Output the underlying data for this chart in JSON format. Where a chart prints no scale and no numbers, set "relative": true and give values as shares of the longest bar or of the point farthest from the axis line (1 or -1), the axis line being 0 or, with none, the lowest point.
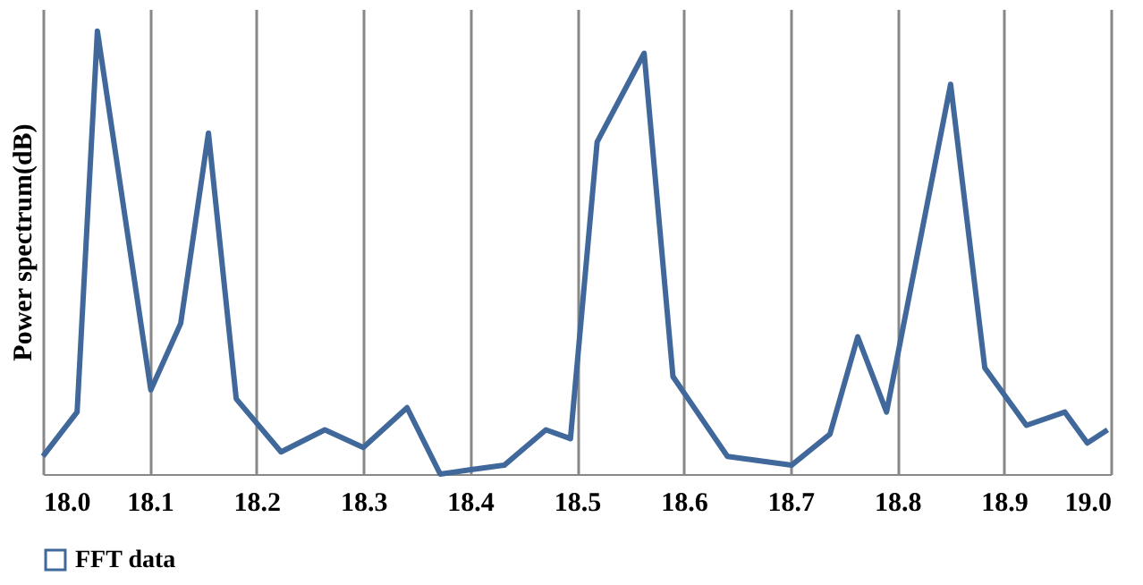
{
  "chart_data": {
    "type": "line",
    "ylabel": "Power spectrum(dB)",
    "relative": true,
    "x": [
      18.0,
      18.032,
      18.051,
      18.101,
      18.129,
      18.155,
      18.181,
      18.223,
      18.264,
      18.3,
      18.341,
      18.372,
      18.401,
      18.432,
      18.471,
      18.494,
      18.519,
      18.563,
      18.59,
      18.641,
      18.701,
      18.737,
      18.763,
      18.79,
      18.85,
      18.882,
      18.921,
      18.957,
      18.978,
      18.997
    ],
    "series": [
      {
        "name": "FFT data",
        "color": "#41689a",
        "values": [
          0.04,
          0.14,
          1.0,
          0.19,
          0.34,
          0.77,
          0.17,
          0.05,
          0.1,
          0.06,
          0.15,
          0.0,
          0.01,
          0.02,
          0.1,
          0.08,
          0.75,
          0.95,
          0.22,
          0.04,
          0.02,
          0.09,
          0.31,
          0.14,
          0.88,
          0.24,
          0.11,
          0.14,
          0.07,
          0.1
        ]
      }
    ],
    "xlim": [
      18.0,
      19.0
    ],
    "xticks": [
      {
        "value": 18.0,
        "label": "18.0"
      },
      {
        "value": 18.1,
        "label": "18.1"
      },
      {
        "value": 18.2,
        "label": "18.2"
      },
      {
        "value": 18.3,
        "label": "18.3"
      },
      {
        "value": 18.4,
        "label": "18.4"
      },
      {
        "value": 18.5,
        "label": "18.5"
      },
      {
        "value": 18.6,
        "label": "18.6"
      },
      {
        "value": 18.7,
        "label": "18.7"
      },
      {
        "value": 18.8,
        "label": "18.8"
      },
      {
        "value": 18.9,
        "label": "18.9"
      },
      {
        "value": 19.0,
        "label": "19.0"
      }
    ],
    "grid": "x",
    "legend": "bottom",
    "marker": "none",
    "line_style": "solid"
  }
}
